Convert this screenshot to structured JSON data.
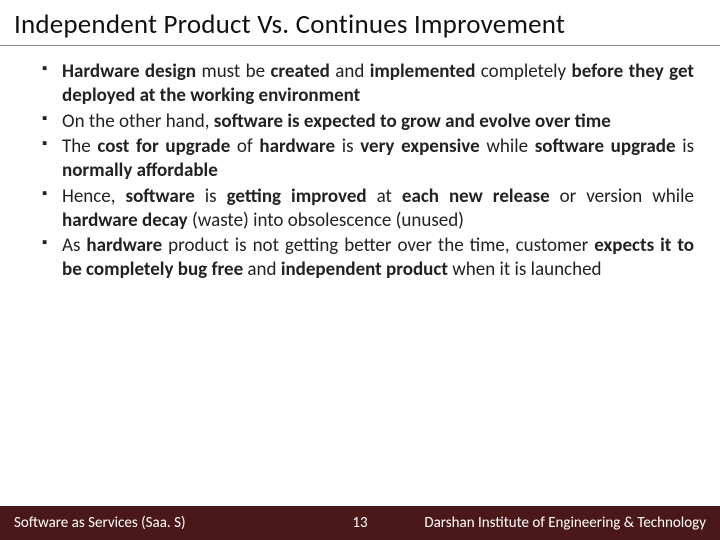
{
  "title": "Independent Product Vs. Continues Improvement",
  "bullets": [
    {
      "html": "<span class=\"b\">Hardware design</span> must be <span class=\"b\">created</span> and <span class=\"b\">implemented</span> completely <span class=\"b\">before they get deployed at the working environment</span>"
    },
    {
      "html": "On the other hand, <span class=\"b\">software is expected to grow and evolve over time</span>"
    },
    {
      "html": "The <span class=\"b\">cost for upgrade</span> of <span class=\"b\">hardware</span> is <span class=\"b\">very expensive</span> while <span class=\"b\">software upgrade</span> is <span class=\"b\">normally affordable</span>"
    },
    {
      "html": "Hence, <span class=\"b\">software</span> is <span class=\"b\">getting improved</span> at <span class=\"b\">each new release</span> or version while <span class=\"b\">hardware decay</span> (waste) into obsolescence (unused)"
    },
    {
      "html": "As <span class=\"b\">hardware</span> product is not getting better over the time, customer <span class=\"b\">expects it to be completely bug free</span> and <span class=\"b\">independent product</span> when it is launched"
    }
  ],
  "footer": {
    "left": "Software as Services (Saa. S)",
    "page": "13",
    "right": "Darshan Institute of Engineering & Technology"
  },
  "colors": {
    "footer_bg": "#4a1818",
    "title_rule": "#888888",
    "text": "#222222",
    "background": "#ffffff"
  },
  "fontsizes": {
    "title": 27,
    "bullet": 19,
    "footer": 15
  }
}
